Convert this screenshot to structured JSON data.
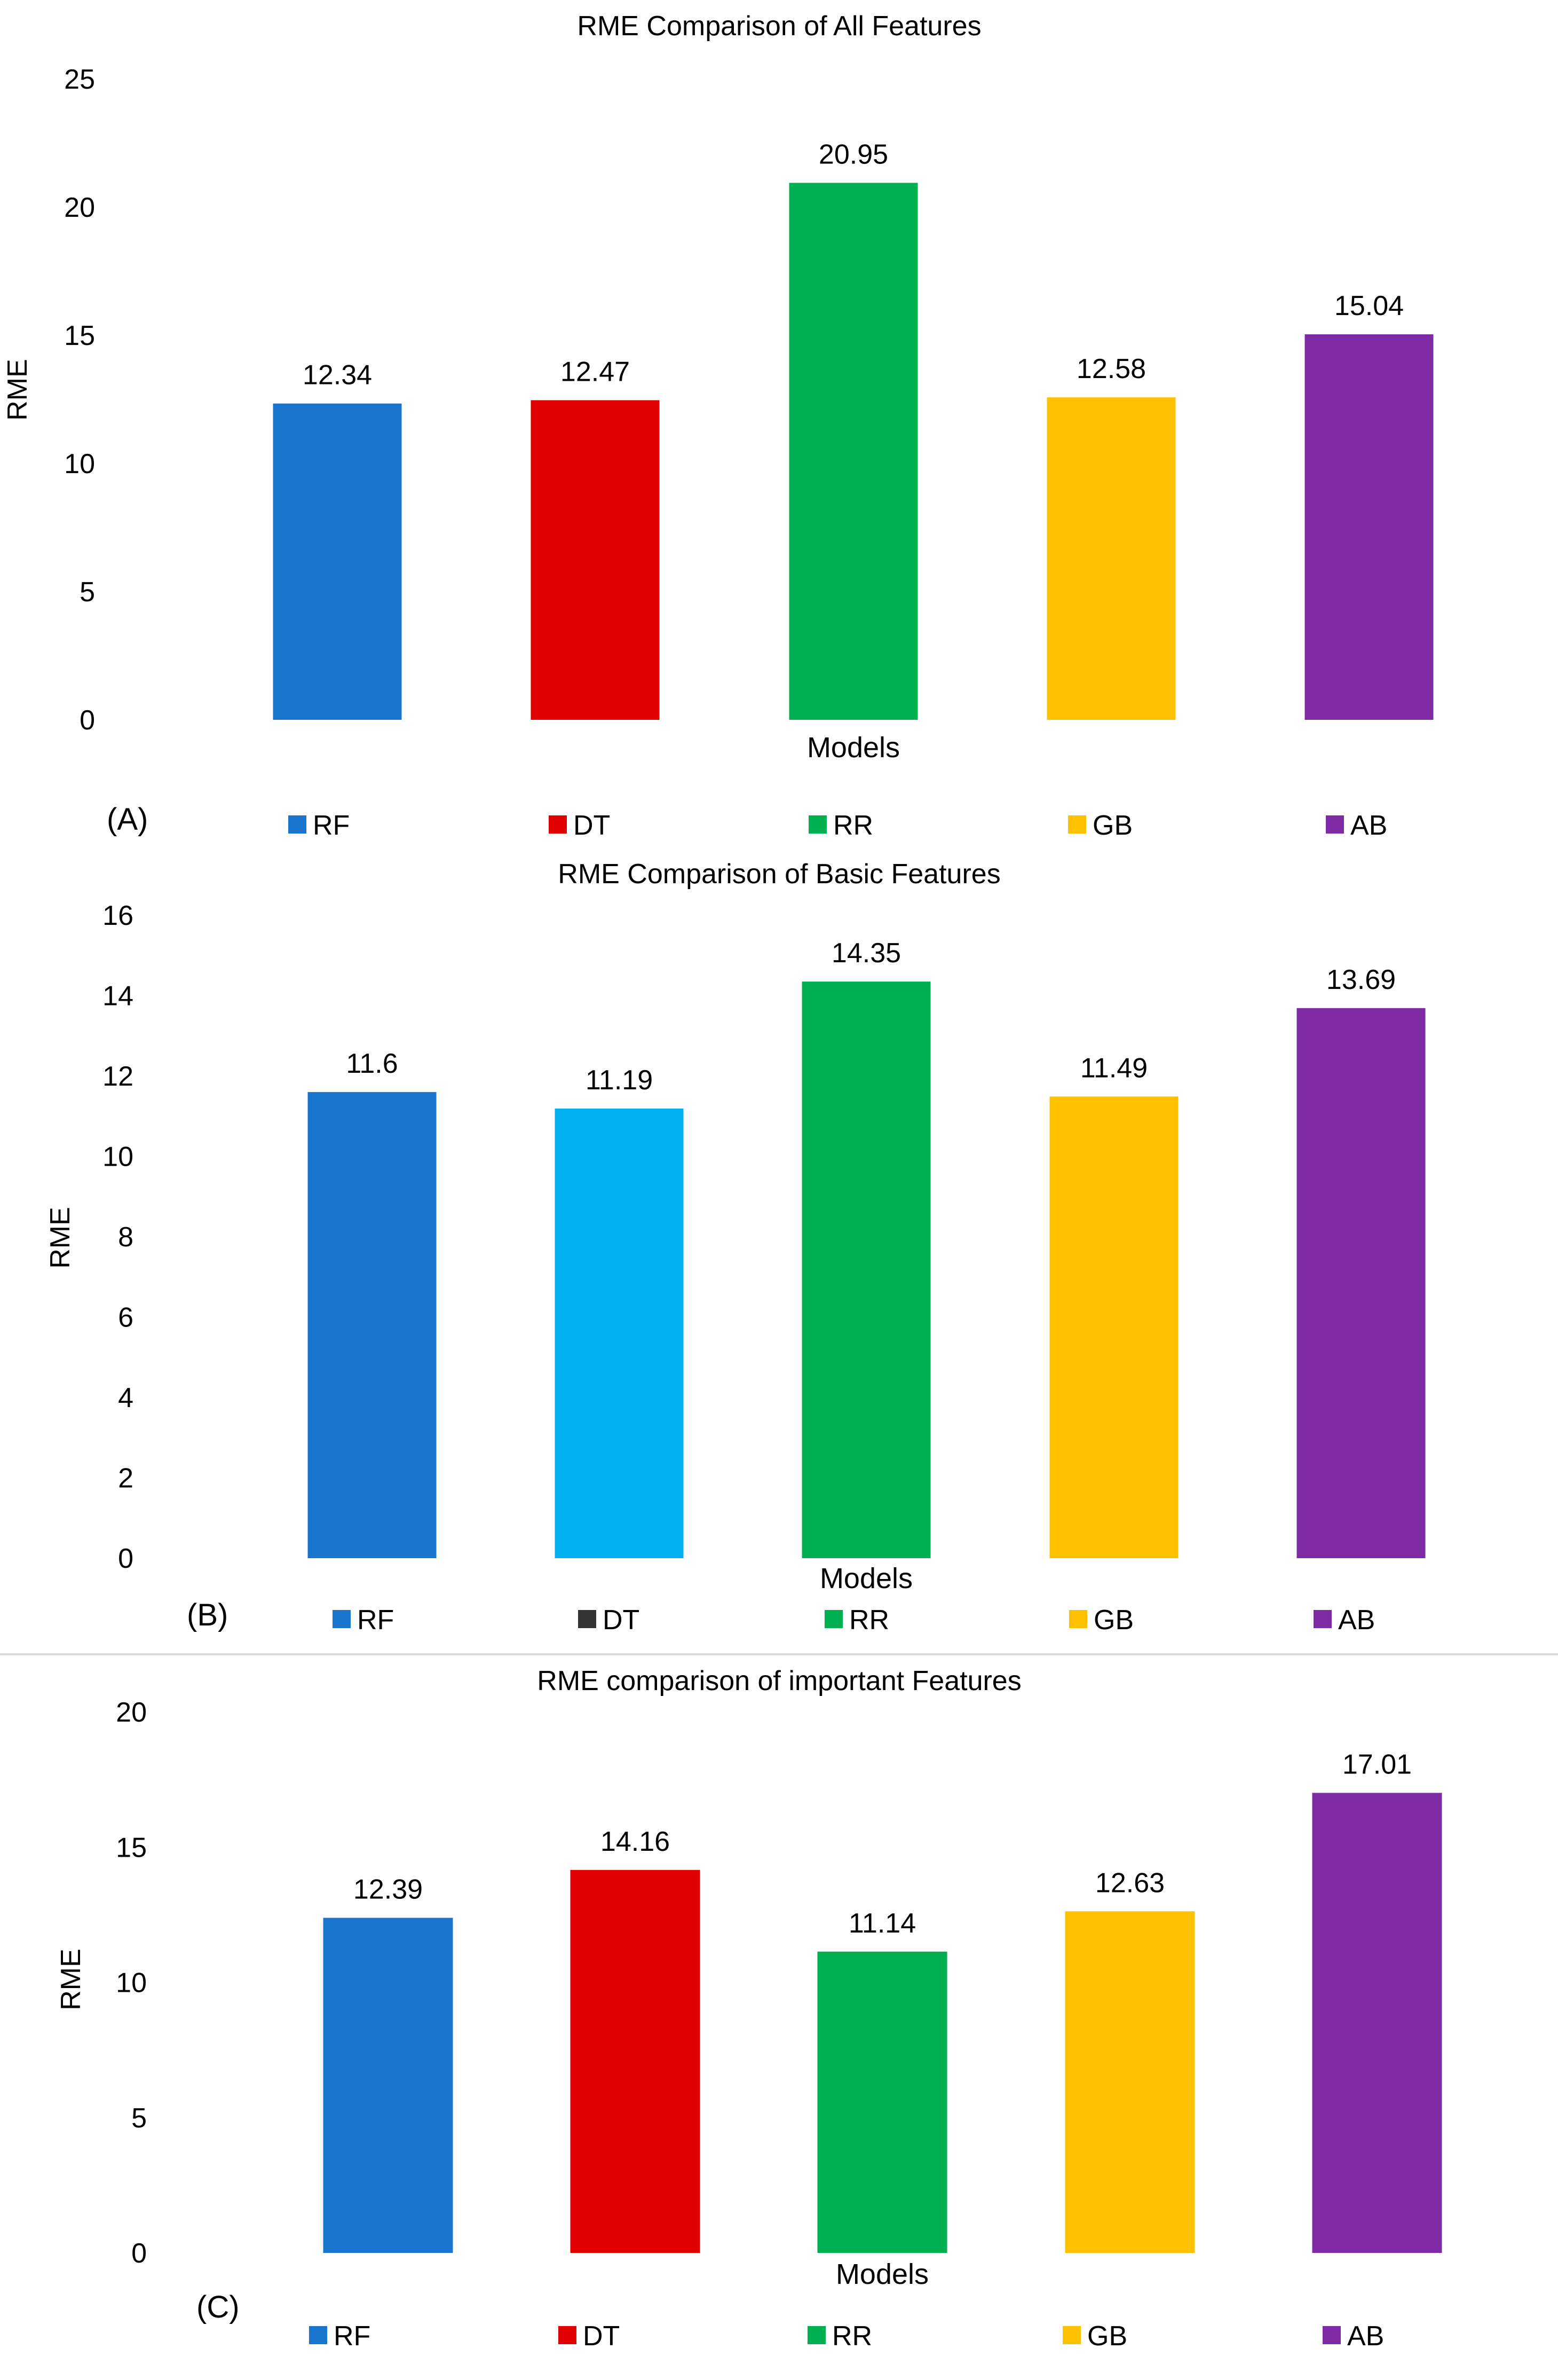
{
  "chart_data": [
    {
      "type": "bar",
      "panel_label": "(A)",
      "title": "RME Comparison of All Features",
      "xlabel": "Models",
      "ylabel": "RME",
      "categories": [
        "RF",
        "DT",
        "RR",
        "GB",
        "AB"
      ],
      "values": [
        12.34,
        12.47,
        20.95,
        12.58,
        15.04
      ],
      "value_labels": [
        "12.34",
        "12.47",
        "20.95",
        "12.58",
        "15.04"
      ],
      "bar_colors": [
        "#1874CD",
        "#E00000",
        "#00B050",
        "#FFC000",
        "#7F2AA5"
      ],
      "legend": [
        {
          "label": "RF",
          "color": "#1874CD"
        },
        {
          "label": "DT",
          "color": "#E00000"
        },
        {
          "label": "RR",
          "color": "#00B050"
        },
        {
          "label": "GB",
          "color": "#FFC000"
        },
        {
          "label": "AB",
          "color": "#7F2AA5"
        }
      ],
      "ylim": [
        0,
        25
      ],
      "yticks": [
        0,
        5,
        10,
        15,
        20,
        25
      ],
      "grid": false,
      "legend_position": "bottom"
    },
    {
      "type": "bar",
      "panel_label": "(B)",
      "title": "RME Comparison of Basic Features",
      "xlabel": "Models",
      "ylabel": "RME",
      "categories": [
        "RF",
        "DT",
        "RR",
        "GB",
        "AB"
      ],
      "values": [
        11.6,
        11.19,
        14.35,
        11.49,
        13.69
      ],
      "value_labels": [
        "11.6",
        "11.19",
        "14.35",
        "11.49",
        "13.69"
      ],
      "bar_colors": [
        "#1874CD",
        "#00B0F0",
        "#00B050",
        "#FFC000",
        "#7F2AA5"
      ],
      "legend": [
        {
          "label": "RF",
          "color": "#1874CD"
        },
        {
          "label": "DT",
          "color": "#333333"
        },
        {
          "label": "RR",
          "color": "#00B050"
        },
        {
          "label": "GB",
          "color": "#FFC000"
        },
        {
          "label": "AB",
          "color": "#7F2AA5"
        }
      ],
      "ylim": [
        0,
        16
      ],
      "yticks": [
        0,
        2,
        4,
        6,
        8,
        10,
        12,
        14,
        16
      ],
      "grid": false,
      "legend_position": "bottom"
    },
    {
      "type": "bar",
      "panel_label": "(C)",
      "title": "RME comparison of important Features",
      "xlabel": "Models",
      "ylabel": "RME",
      "categories": [
        "RF",
        "DT",
        "RR",
        "GB",
        "AB"
      ],
      "values": [
        12.39,
        14.16,
        11.14,
        12.63,
        17.01
      ],
      "value_labels": [
        "12.39",
        "14.16",
        "11.14",
        "12.63",
        "17.01"
      ],
      "bar_colors": [
        "#1874CD",
        "#E00000",
        "#00B050",
        "#FFC000",
        "#7F2AA5"
      ],
      "legend": [
        {
          "label": "RF",
          "color": "#1874CD"
        },
        {
          "label": "DT",
          "color": "#E00000"
        },
        {
          "label": "RR",
          "color": "#00B050"
        },
        {
          "label": "GB",
          "color": "#FFC000"
        },
        {
          "label": "AB",
          "color": "#7F2AA5"
        }
      ],
      "ylim": [
        0,
        20
      ],
      "yticks": [
        0,
        5,
        10,
        15,
        20
      ],
      "grid": false,
      "legend_position": "bottom"
    }
  ]
}
